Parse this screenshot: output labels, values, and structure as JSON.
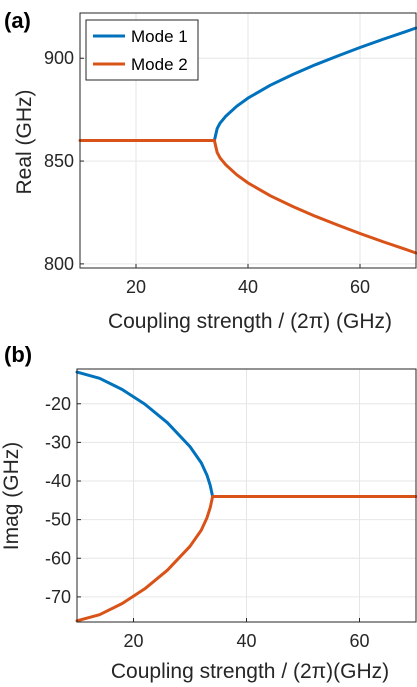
{
  "chart_data": [
    {
      "type": "line",
      "panel_label": "(a)",
      "xlabel": "Coupling strength / (2π) (GHz)",
      "ylabel": "Real (GHz)",
      "xlim": [
        10,
        70
      ],
      "ylim": [
        798,
        922
      ],
      "xticks": [
        20,
        40,
        60
      ],
      "yticks": [
        800,
        850,
        900
      ],
      "grid": true,
      "legend": {
        "placement": "top-left",
        "entries": [
          "Mode 1",
          "Mode 2"
        ]
      },
      "series": [
        {
          "name": "Mode 1",
          "color": "#0072BD",
          "x": [
            34,
            34.5,
            35,
            36,
            38,
            40,
            44,
            48,
            52,
            56,
            60,
            64,
            68,
            70
          ],
          "y": [
            860,
            865.9,
            868.4,
            871.7,
            876.7,
            880.6,
            886.9,
            892.1,
            896.8,
            901.1,
            905.2,
            909.1,
            912.8,
            914.7
          ]
        },
        {
          "name": "Mode 2",
          "color": "#D95319",
          "x": [
            10,
            20,
            30,
            34,
            34.5,
            35,
            36,
            38,
            40,
            44,
            48,
            52,
            56,
            60,
            64,
            68,
            70
          ],
          "y": [
            860,
            860,
            860,
            860,
            854.1,
            851.6,
            848.3,
            843.3,
            839.4,
            833.1,
            827.9,
            823.2,
            818.9,
            814.8,
            810.9,
            807.2,
            805.3
          ]
        }
      ]
    },
    {
      "type": "line",
      "panel_label": "(b)",
      "xlabel": "Coupling strength / (2π)(GHz)",
      "ylabel": "Imag (GHz)",
      "xlim": [
        10,
        70
      ],
      "ylim": [
        -76.5,
        -11
      ],
      "xticks": [
        20,
        40,
        60
      ],
      "yticks": [
        -70,
        -60,
        -50,
        -40,
        -30,
        -20
      ],
      "grid": true,
      "series": [
        {
          "name": "Mode 1",
          "color": "#0072BD",
          "x": [
            10,
            14,
            18,
            22,
            26,
            30,
            32,
            33,
            33.6,
            34
          ],
          "y": [
            -11.8,
            -13.4,
            -16.3,
            -20.1,
            -24.9,
            -31.1,
            -35.3,
            -38.5,
            -41.2,
            -44
          ]
        },
        {
          "name": "Mode 2",
          "color": "#D95319",
          "x": [
            10,
            14,
            18,
            22,
            26,
            30,
            32,
            33,
            33.6,
            34,
            40,
            50,
            60,
            70
          ],
          "y": [
            -76.2,
            -74.6,
            -71.7,
            -67.9,
            -63.1,
            -56.9,
            -52.7,
            -49.5,
            -46.8,
            -44,
            -44,
            -44,
            -44,
            -44
          ]
        }
      ]
    }
  ]
}
